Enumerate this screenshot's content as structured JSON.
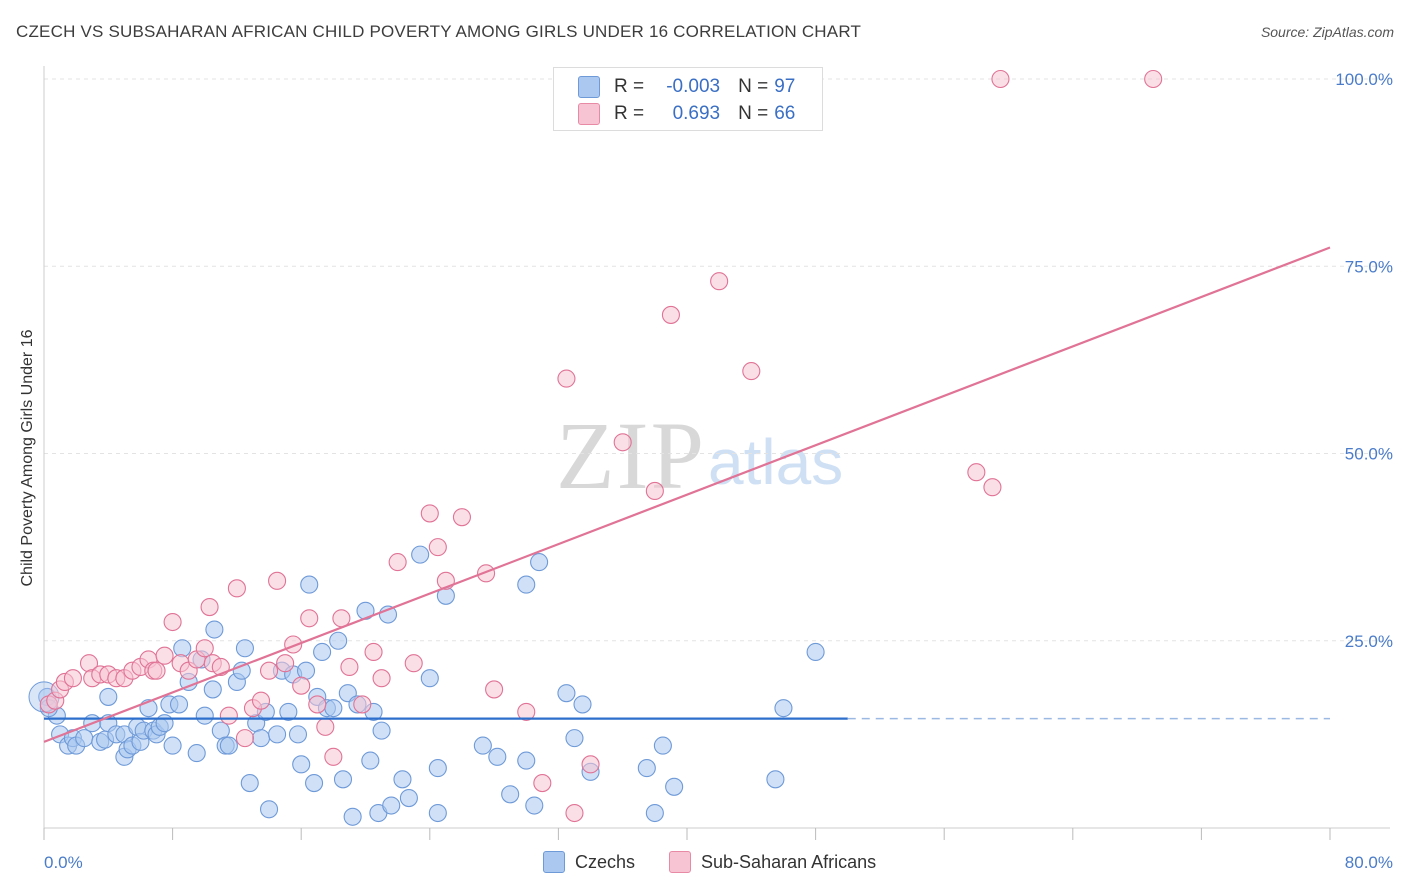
{
  "title": "CZECH VS SUBSAHARAN AFRICAN CHILD POVERTY AMONG GIRLS UNDER 16 CORRELATION CHART",
  "source": "Source: ZipAtlas.com",
  "watermark": {
    "zip": "ZIP",
    "atlas": "atlas"
  },
  "legend_top": [
    {
      "r_label": "R =",
      "r_value": "-0.003",
      "n_label": "N =",
      "n_value": "97",
      "color": "#aac8f0",
      "border": "#6f9ad8"
    },
    {
      "r_label": "R =",
      "r_value": "0.693",
      "n_label": "N =",
      "n_value": "66",
      "color": "#f7c4d3",
      "border": "#e88aa6"
    }
  ],
  "legend_bottom": [
    {
      "label": "Czechs",
      "color": "#aac8f0",
      "border": "#6f9ad8"
    },
    {
      "label": "Sub-Saharan Africans",
      "color": "#f7c4d3",
      "border": "#e88aa6"
    }
  ],
  "chart_data": {
    "type": "scatter",
    "title": "CZECH VS SUBSAHARAN AFRICAN CHILD POVERTY AMONG GIRLS UNDER 16 CORRELATION CHART",
    "xlabel": "",
    "ylabel": "Child Poverty Among Girls Under 16",
    "xlim": [
      0,
      80
    ],
    "ylim": [
      0,
      100
    ],
    "x_tick_labels": [
      "0.0%",
      "80.0%"
    ],
    "y_tick_labels": [
      "25.0%",
      "50.0%",
      "75.0%",
      "100.0%"
    ],
    "y_tick_values": [
      25,
      50,
      75,
      100
    ],
    "x_minor_ticks": [
      0,
      8,
      16,
      24,
      32,
      40,
      48,
      56,
      64,
      72,
      80
    ],
    "grid": true,
    "legend_position": "top-center",
    "series": [
      {
        "name": "Czechs",
        "color": "#6f9ad8",
        "fill": "#aac8f0",
        "trend": {
          "x0": 0,
          "y0": 14.6,
          "x1": 50,
          "y1": 14.6,
          "dashed_to": 80
        },
        "points": [
          [
            0.2,
            17.5
          ],
          [
            0.8,
            15
          ],
          [
            1,
            12.5
          ],
          [
            1.5,
            11
          ],
          [
            1.8,
            12
          ],
          [
            2,
            11
          ],
          [
            2.5,
            12
          ],
          [
            3,
            14
          ],
          [
            3.5,
            11.5
          ],
          [
            3.8,
            11.8
          ],
          [
            4,
            14
          ],
          [
            4.5,
            12.5
          ],
          [
            4,
            17.5
          ],
          [
            5,
            12.5
          ],
          [
            5,
            9.5
          ],
          [
            5.2,
            10.5
          ],
          [
            5.5,
            11
          ],
          [
            5.8,
            13.5
          ],
          [
            6,
            11.5
          ],
          [
            6.2,
            13
          ],
          [
            6.5,
            16
          ],
          [
            6.8,
            13
          ],
          [
            7,
            12.5
          ],
          [
            7.2,
            13.5
          ],
          [
            7.5,
            14
          ],
          [
            7.8,
            16.5
          ],
          [
            8,
            11
          ],
          [
            8.4,
            16.5
          ],
          [
            8.6,
            24
          ],
          [
            9,
            19.5
          ],
          [
            9.5,
            10
          ],
          [
            9.8,
            22.5
          ],
          [
            10,
            15
          ],
          [
            10.5,
            18.5
          ],
          [
            10.6,
            26.5
          ],
          [
            11,
            13
          ],
          [
            11.3,
            11
          ],
          [
            11.5,
            11
          ],
          [
            12,
            19.5
          ],
          [
            12.3,
            21
          ],
          [
            12.5,
            24
          ],
          [
            12.8,
            6
          ],
          [
            13.2,
            14
          ],
          [
            13.5,
            12
          ],
          [
            13.8,
            15.5
          ],
          [
            14,
            2.5
          ],
          [
            14.5,
            12.5
          ],
          [
            14.8,
            21
          ],
          [
            15.2,
            15.5
          ],
          [
            15.5,
            20.5
          ],
          [
            15.8,
            12.5
          ],
          [
            16,
            8.5
          ],
          [
            16.3,
            21
          ],
          [
            16.5,
            32.5
          ],
          [
            16.8,
            6
          ],
          [
            17,
            17.5
          ],
          [
            17.3,
            23.5
          ],
          [
            17.6,
            16
          ],
          [
            18,
            16
          ],
          [
            18.3,
            25
          ],
          [
            18.6,
            6.5
          ],
          [
            18.9,
            18
          ],
          [
            19.2,
            1.5
          ],
          [
            19.5,
            16.5
          ],
          [
            20,
            29
          ],
          [
            20.3,
            9
          ],
          [
            20.5,
            15.5
          ],
          [
            20.8,
            2
          ],
          [
            21,
            13
          ],
          [
            21.4,
            28.5
          ],
          [
            21.6,
            3
          ],
          [
            22.3,
            6.5
          ],
          [
            22.7,
            4
          ],
          [
            23.4,
            36.5
          ],
          [
            24,
            20
          ],
          [
            24.5,
            2
          ],
          [
            24.5,
            8
          ],
          [
            25,
            31
          ],
          [
            27.3,
            11
          ],
          [
            28.2,
            9.5
          ],
          [
            29,
            4.5
          ],
          [
            30,
            32.5
          ],
          [
            30.8,
            35.5
          ],
          [
            30,
            9
          ],
          [
            30.5,
            3
          ],
          [
            32.5,
            18
          ],
          [
            33,
            12
          ],
          [
            33.5,
            16.5
          ],
          [
            34,
            7.5
          ],
          [
            37.5,
            8
          ],
          [
            38,
            2
          ],
          [
            38.5,
            11
          ],
          [
            39.2,
            5.5
          ],
          [
            45.5,
            6.5
          ],
          [
            46,
            16
          ],
          [
            48,
            23.5
          ],
          [
            0.3,
            16
          ]
        ]
      },
      {
        "name": "Sub-Saharan Africans",
        "color": "#e07396",
        "fill": "#f7c4d3",
        "trend": {
          "x0": 0,
          "y0": 11.5,
          "x1": 80,
          "y1": 77.5
        },
        "points": [
          [
            0.3,
            16.5
          ],
          [
            0.7,
            17
          ],
          [
            1,
            18.5
          ],
          [
            1.3,
            19.5
          ],
          [
            1.8,
            20
          ],
          [
            2.8,
            22
          ],
          [
            3,
            20
          ],
          [
            3.5,
            20.5
          ],
          [
            4,
            20.5
          ],
          [
            4.5,
            20
          ],
          [
            5,
            20
          ],
          [
            5.5,
            21
          ],
          [
            6,
            21.5
          ],
          [
            6.5,
            22.5
          ],
          [
            6.8,
            21
          ],
          [
            7,
            21
          ],
          [
            7.5,
            23
          ],
          [
            8,
            27.5
          ],
          [
            8.5,
            22
          ],
          [
            9,
            21
          ],
          [
            9.5,
            22.5
          ],
          [
            10,
            24
          ],
          [
            10.3,
            29.5
          ],
          [
            10.5,
            22
          ],
          [
            11,
            21.5
          ],
          [
            11.5,
            15
          ],
          [
            12,
            32
          ],
          [
            12.5,
            12
          ],
          [
            13,
            16
          ],
          [
            13.5,
            17
          ],
          [
            14,
            21
          ],
          [
            14.5,
            33
          ],
          [
            15,
            22
          ],
          [
            15.5,
            24.5
          ],
          [
            16,
            19
          ],
          [
            16.5,
            28
          ],
          [
            17,
            16.5
          ],
          [
            17.5,
            13.5
          ],
          [
            18,
            9.5
          ],
          [
            18.5,
            28
          ],
          [
            19,
            21.5
          ],
          [
            19.8,
            16.5
          ],
          [
            20.5,
            23.5
          ],
          [
            21,
            20
          ],
          [
            22,
            35.5
          ],
          [
            23,
            22
          ],
          [
            24,
            42
          ],
          [
            24.5,
            37.5
          ],
          [
            25,
            33
          ],
          [
            26,
            41.5
          ],
          [
            27.5,
            34
          ],
          [
            28,
            18.5
          ],
          [
            30,
            15.5
          ],
          [
            31,
            6
          ],
          [
            32.5,
            60
          ],
          [
            33,
            2
          ],
          [
            34,
            8.5
          ],
          [
            36,
            51.5
          ],
          [
            38,
            45
          ],
          [
            39,
            68.5
          ],
          [
            42,
            73
          ],
          [
            44,
            61
          ],
          [
            58,
            47.5
          ],
          [
            59,
            45.5
          ],
          [
            59.5,
            100
          ],
          [
            69,
            100
          ]
        ]
      }
    ]
  }
}
